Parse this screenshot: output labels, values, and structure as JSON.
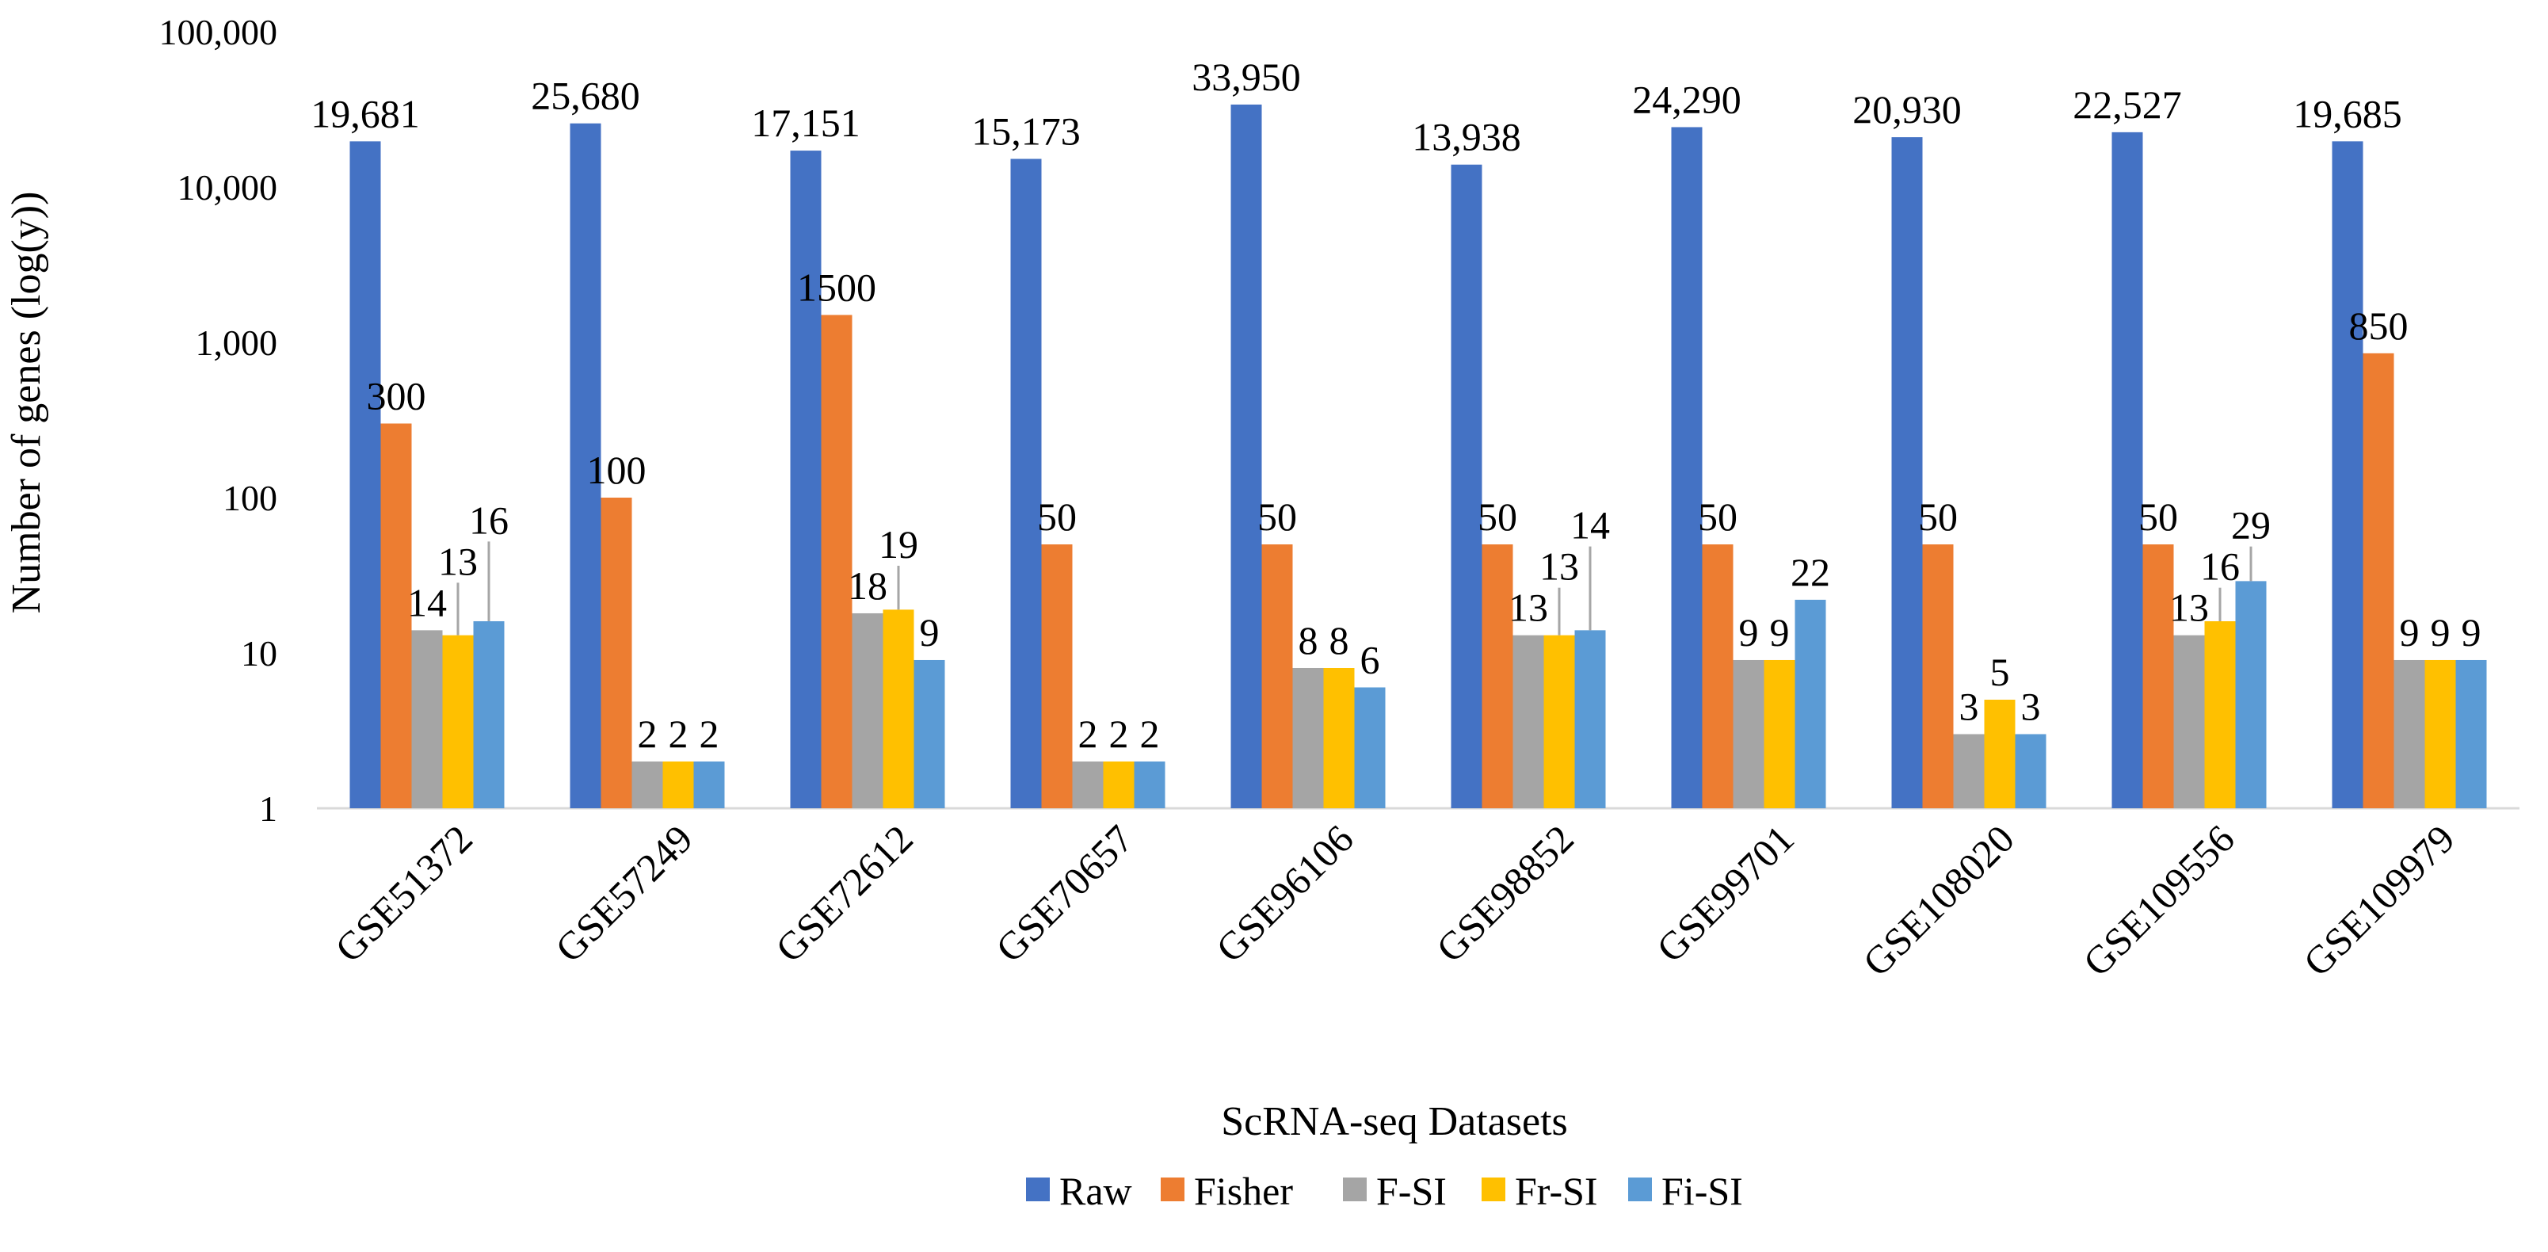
{
  "chart_data": {
    "type": "bar",
    "scale": "log",
    "title": "",
    "xlabel": "ScRNA-seq Datasets",
    "ylabel": "Number of genes (log(y))",
    "ylim": [
      1,
      100000
    ],
    "yticks": [
      1,
      10,
      100,
      1000,
      10000,
      100000
    ],
    "ytick_labels": [
      "1",
      "10",
      "100",
      "1,000",
      "10,000",
      "100,000"
    ],
    "categories": [
      "GSE51372",
      "GSE57249",
      "GSE72612",
      "GSE70657",
      "GSE96106",
      "GSE98852",
      "GSE99701",
      "GSE108020",
      "GSE109556",
      "GSE109979"
    ],
    "legend_position": "bottom",
    "series": [
      {
        "name": "Raw",
        "color": "#4472C4",
        "values": [
          19681,
          25680,
          17151,
          15173,
          33950,
          13938,
          24290,
          20930,
          22527,
          19685
        ],
        "labels": [
          "19,681",
          "25,680",
          "17,151",
          "15,173",
          "33,950",
          "13,938",
          "24,290",
          "20,930",
          "22,527",
          "19,685"
        ]
      },
      {
        "name": "Fisher",
        "color": "#ED7D31",
        "values": [
          300,
          100,
          1500,
          50,
          50,
          50,
          50,
          50,
          50,
          850
        ],
        "labels": [
          "300",
          "100",
          "1500",
          "50",
          "50",
          "50",
          "50",
          "50",
          "50",
          "850"
        ]
      },
      {
        "name": "F-SI",
        "color": "#A5A5A5",
        "values": [
          14,
          2,
          18,
          2,
          8,
          13,
          9,
          3,
          13,
          9
        ],
        "labels": [
          "14",
          "2",
          "18",
          "2",
          "8",
          "13",
          "9",
          "3",
          "13",
          "9"
        ]
      },
      {
        "name": "Fr-SI",
        "color": "#FFC000",
        "values": [
          13,
          2,
          19,
          2,
          8,
          13,
          9,
          5,
          16,
          9
        ],
        "labels": [
          "13",
          "2",
          "19",
          "2",
          "8",
          "13",
          "9",
          "5",
          "16",
          "9"
        ]
      },
      {
        "name": "Fi-SI",
        "color": "#5B9BD5",
        "values": [
          16,
          2,
          9,
          2,
          6,
          14,
          22,
          3,
          29,
          9
        ],
        "labels": [
          "16",
          "2",
          "9",
          "2",
          "6",
          "14",
          "22",
          "3",
          "29",
          "9"
        ]
      }
    ]
  }
}
